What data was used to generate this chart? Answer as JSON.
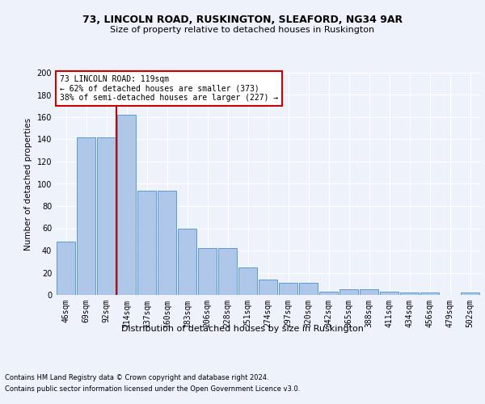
{
  "title1": "73, LINCOLN ROAD, RUSKINGTON, SLEAFORD, NG34 9AR",
  "title2": "Size of property relative to detached houses in Ruskington",
  "xlabel": "Distribution of detached houses by size in Ruskington",
  "ylabel": "Number of detached properties",
  "categories": [
    "46sqm",
    "69sqm",
    "92sqm",
    "114sqm",
    "137sqm",
    "160sqm",
    "183sqm",
    "206sqm",
    "228sqm",
    "251sqm",
    "274sqm",
    "297sqm",
    "320sqm",
    "342sqm",
    "365sqm",
    "388sqm",
    "411sqm",
    "434sqm",
    "456sqm",
    "479sqm",
    "502sqm"
  ],
  "values": [
    48,
    142,
    142,
    162,
    94,
    94,
    60,
    42,
    42,
    25,
    14,
    11,
    11,
    3,
    5,
    5,
    3,
    2,
    2,
    0,
    2
  ],
  "bar_color": "#aec6e8",
  "bar_edge_color": "#5b9bd5",
  "annotation_text": "73 LINCOLN ROAD: 119sqm\n← 62% of detached houses are smaller (373)\n38% of semi-detached houses are larger (227) →",
  "annotation_box_color": "#ffffff",
  "annotation_box_edge": "#cc0000",
  "vline_color": "#cc0000",
  "vline_x": 2.5,
  "footer1": "Contains HM Land Registry data © Crown copyright and database right 2024.",
  "footer2": "Contains public sector information licensed under the Open Government Licence v3.0.",
  "ylim": [
    0,
    200
  ],
  "background_color": "#eef2fa",
  "grid_color": "#ffffff",
  "title1_fontsize": 9,
  "title2_fontsize": 8,
  "ylabel_fontsize": 7.5,
  "xlabel_fontsize": 8,
  "tick_fontsize": 7,
  "footer_fontsize": 6
}
